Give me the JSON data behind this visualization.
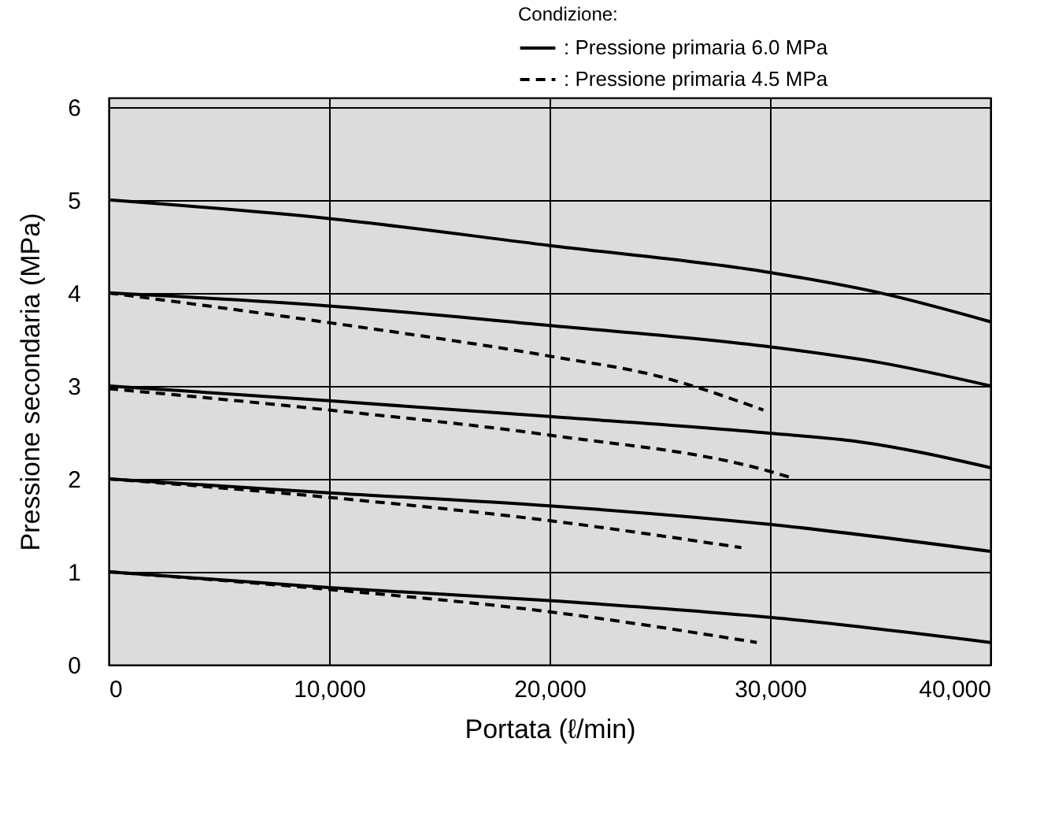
{
  "chart_data": {
    "type": "line",
    "xlabel": "Portata (ℓ/min)",
    "ylabel": "Pressione secondaria (MPa)",
    "legend_title": "Condizione:",
    "legend": "top right",
    "grid": true,
    "xlim": [
      0,
      40000
    ],
    "ylim": [
      0,
      6.1
    ],
    "xticks": [
      0,
      {
        "value": 10000,
        "label": "10,000"
      },
      {
        "value": 20000,
        "label": "20,000"
      },
      {
        "value": 30000,
        "label": "30,000"
      },
      {
        "value": 40000,
        "label": "40,000"
      }
    ],
    "yticks": [
      0,
      1,
      2,
      3,
      4,
      5,
      6
    ],
    "series": [
      {
        "name": ": Pressione primaria 6.0 MPa",
        "color": "#000000",
        "line_style": "solid",
        "x": [
          0,
          10000,
          20000,
          30000,
          35000,
          40000
        ],
        "values": [
          5,
          4.8,
          4.51,
          4.22,
          4.0,
          3.69
        ]
      },
      {
        "color": "#000000",
        "line_style": "solid",
        "x": [
          0,
          10000,
          20000,
          30000,
          35000,
          40000
        ],
        "values": [
          4,
          3.86,
          3.65,
          3.42,
          3.25,
          3.0
        ]
      },
      {
        "color": "#000000",
        "line_style": "solid",
        "x": [
          0,
          10000,
          20000,
          30000,
          34000,
          40000
        ],
        "values": [
          3,
          2.84,
          2.67,
          2.49,
          2.4,
          2.12
        ]
      },
      {
        "color": "#000000",
        "line_style": "solid",
        "x": [
          0,
          10000,
          20000,
          30000,
          40000
        ],
        "values": [
          2,
          1.85,
          1.71,
          1.51,
          1.22
        ]
      },
      {
        "color": "#000000",
        "line_style": "solid",
        "x": [
          0,
          10000,
          20000,
          30000,
          40000
        ],
        "values": [
          1,
          0.83,
          0.69,
          0.51,
          0.24
        ]
      },
      {
        "name": ": Pressione primaria 4.5 MPa",
        "color": "#000000",
        "line_style": "dashed",
        "x": [
          0,
          10000,
          20000,
          25000,
          29700
        ],
        "values": [
          4,
          3.68,
          3.32,
          3.1,
          2.74
        ]
      },
      {
        "color": "#000000",
        "line_style": "dashed",
        "x": [
          0,
          10000,
          20000,
          30000,
          31000
        ],
        "values": [
          2.97,
          2.74,
          2.47,
          2.08,
          2.01
        ]
      },
      {
        "color": "#000000",
        "line_style": "dashed",
        "x": [
          0,
          10000,
          20000,
          28700
        ],
        "values": [
          2,
          1.8,
          1.55,
          1.26
        ]
      },
      {
        "color": "#000000",
        "line_style": "dashed",
        "x": [
          0,
          10000,
          20000,
          29400
        ],
        "values": [
          1,
          0.81,
          0.57,
          0.24
        ]
      }
    ]
  }
}
